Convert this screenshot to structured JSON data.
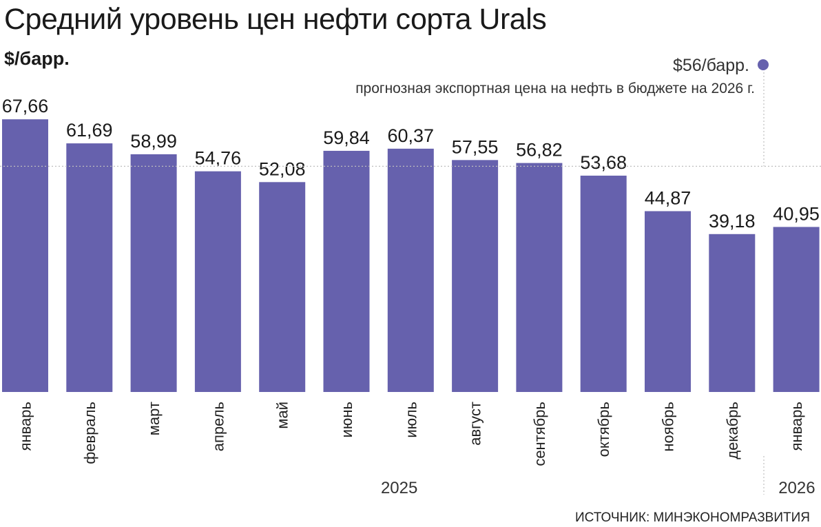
{
  "chart_data": {
    "type": "bar",
    "title": "Средний уровень цен нефти сорта Urals",
    "ylabel": "$/барр.",
    "categories": [
      "январь",
      "февраль",
      "март",
      "апрель",
      "май",
      "июнь",
      "июль",
      "август",
      "сентябрь",
      "октябрь",
      "ноябрь",
      "декабрь",
      "январь"
    ],
    "value_labels": [
      "67,66",
      "61,69",
      "58,99",
      "54,76",
      "52,08",
      "59,84",
      "60,37",
      "57,55",
      "56,82",
      "53,68",
      "44,87",
      "39,18",
      "40,95"
    ],
    "values": [
      67.66,
      61.69,
      58.99,
      54.76,
      52.08,
      59.84,
      60.37,
      57.55,
      56.82,
      53.68,
      44.87,
      39.18,
      40.95
    ],
    "year_groups": [
      {
        "label": "2025",
        "from": 0,
        "to": 11
      },
      {
        "label": "2026",
        "from": 12,
        "to": 12
      }
    ],
    "reference_line": {
      "value": 56,
      "label": "$56/барр.",
      "note": "прогнозная экспортная цена на нефть в бюджете на 2026 г."
    },
    "ylim": [
      0,
      70
    ],
    "grid": false,
    "source": "ИСТОЧНИК: МИНЭКОНОМРАЗВИТИЯ",
    "colors": {
      "bar": "#6661ad",
      "reference": "#bdbdbd"
    }
  }
}
